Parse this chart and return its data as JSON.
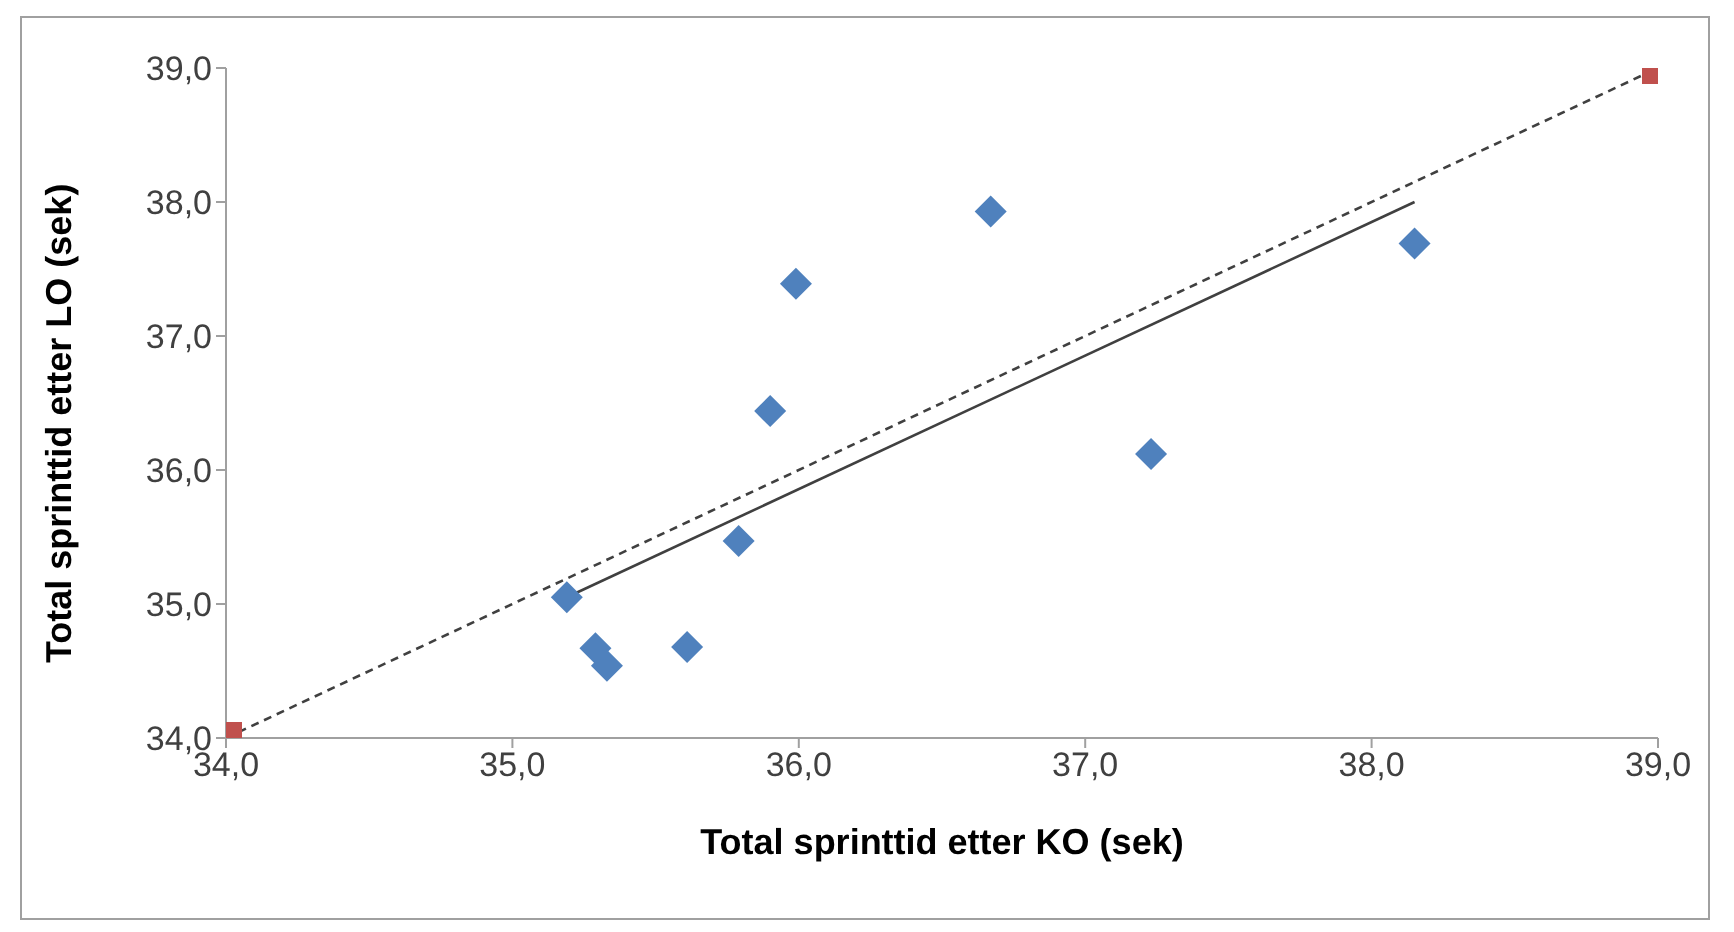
{
  "chart_data": {
    "type": "scatter",
    "xlabel": "Total sprinttid etter KO (sek)",
    "ylabel": "Total sprinttid etter LO (sek)",
    "xlim": [
      34,
      39
    ],
    "ylim": [
      34,
      39
    ],
    "xticks": [
      {
        "value": 34,
        "label": "34,0"
      },
      {
        "value": 35,
        "label": "35,0"
      },
      {
        "value": 36,
        "label": "36,0"
      },
      {
        "value": 37,
        "label": "37,0"
      },
      {
        "value": 38,
        "label": "38,0"
      },
      {
        "value": 39,
        "label": "39,0"
      }
    ],
    "yticks": [
      {
        "value": 34,
        "label": "34,0"
      },
      {
        "value": 35,
        "label": "35,0"
      },
      {
        "value": 36,
        "label": "36,0"
      },
      {
        "value": 37,
        "label": "37,0"
      },
      {
        "value": 38,
        "label": "38,0"
      },
      {
        "value": 39,
        "label": "39,0"
      }
    ],
    "grid": false,
    "legend": false,
    "series": [
      {
        "color": "#4f81bd",
        "marker": "diamond",
        "x": [
          35.19,
          35.29,
          35.33,
          35.61,
          35.79,
          35.9,
          35.99,
          36.67,
          37.23,
          38.15
        ],
        "values": [
          35.05,
          34.67,
          34.54,
          34.68,
          35.47,
          36.44,
          37.39,
          37.93,
          36.12,
          37.69
        ]
      },
      {
        "color": "#c0504d",
        "marker": "square",
        "x": [
          34,
          39
        ],
        "values": [
          34,
          39
        ]
      },
      {
        "type": "line",
        "color": "#404040",
        "line_style": "dashed",
        "x": [
          34,
          39
        ],
        "values": [
          34,
          39
        ]
      },
      {
        "type": "line",
        "color": "#404040",
        "line_style": "solid",
        "x": [
          35.19,
          38.15
        ],
        "values": [
          35.05,
          38.0
        ]
      }
    ]
  }
}
